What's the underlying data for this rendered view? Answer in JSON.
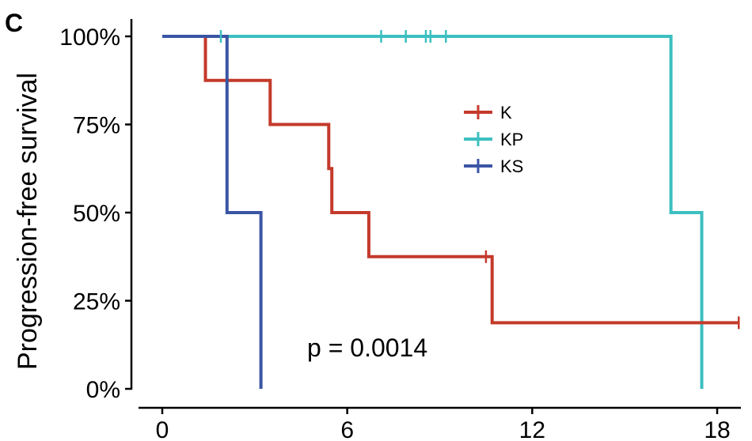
{
  "chart_data": {
    "type": "line",
    "subtype": "kaplan-meier",
    "panel_label": "C",
    "title": "",
    "xlabel": "",
    "ylabel": "Progression-free survival",
    "xlim": [
      0,
      18.7
    ],
    "ylim": [
      0,
      1
    ],
    "x_ticks": [
      0,
      6,
      12,
      18
    ],
    "y_ticks": [
      0,
      0.25,
      0.5,
      0.75,
      1
    ],
    "y_tick_labels": [
      "0%",
      "25%",
      "50%",
      "75%",
      "100%"
    ],
    "annotation": "p = 0.0014",
    "legend_position": "top-right inside",
    "series": [
      {
        "name": "K",
        "color": "#c43a2b",
        "steps": [
          [
            0,
            1
          ],
          [
            1.4,
            0.875
          ],
          [
            3.5,
            0.75
          ],
          [
            5.4,
            0.625
          ],
          [
            5.5,
            0.5
          ],
          [
            6.7,
            0.375
          ],
          [
            10.7,
            0.1875
          ],
          [
            18.7,
            0.1875
          ]
        ],
        "censored": [
          [
            10.5,
            0.375
          ],
          [
            18.7,
            0.1875
          ]
        ]
      },
      {
        "name": "KP",
        "color": "#3cbfc0",
        "steps": [
          [
            0,
            1
          ],
          [
            16.5,
            0.5
          ],
          [
            17.5,
            0
          ]
        ],
        "censored": [
          [
            1.9,
            1
          ],
          [
            7.1,
            1
          ],
          [
            7.9,
            1
          ],
          [
            8.55,
            1
          ],
          [
            8.7,
            1
          ],
          [
            9.2,
            1
          ]
        ]
      },
      {
        "name": "KS",
        "color": "#3a55a4",
        "steps": [
          [
            0,
            1
          ],
          [
            2.1,
            0.5
          ],
          [
            3.2,
            0
          ]
        ],
        "censored": []
      }
    ]
  }
}
